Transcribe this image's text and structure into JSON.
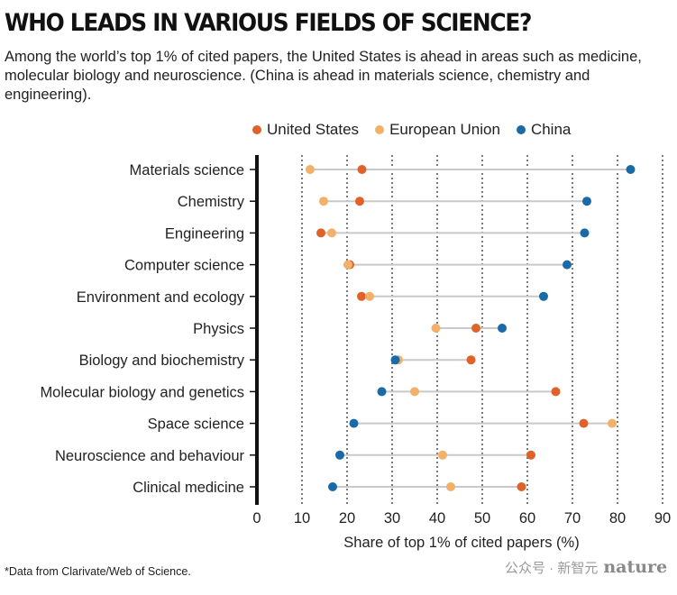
{
  "header": {
    "title": "WHO LEADS IN VARIOUS FIELDS OF SCIENCE?",
    "subtitle": "Among the world’s top 1% of cited papers, the United States is ahead in areas such as medicine, molecular biology and neuroscience. (China is ahead in materials science, chemistry and engineering)."
  },
  "footer": {
    "footnote": "*Data from Clarivate/Web of Science.",
    "watermark_source": "公众号 · 新智元",
    "watermark_brand": "nature"
  },
  "colors": {
    "us": "#e0622a",
    "eu": "#f2b06a",
    "china": "#1a6aa8",
    "connector": "#c9c9c9",
    "grid": "#222222"
  },
  "chart_data": {
    "type": "dot",
    "xlabel": "Share of top 1% of cited papers (%)",
    "xlim": [
      0,
      90
    ],
    "xticks": [
      0,
      10,
      20,
      30,
      40,
      50,
      60,
      70,
      80,
      90
    ],
    "grid": "vertical dotted",
    "legend_placement": "top",
    "categories": [
      "Materials science",
      "Chemistry",
      "Engineering",
      "Computer science",
      "Environment and ecology",
      "Physics",
      "Biology and biochemistry",
      "Molecular biology and genetics",
      "Space science",
      "Neuroscience and behaviour",
      "Clinical medicine"
    ],
    "series": [
      {
        "name": "United States",
        "key": "us",
        "values": [
          23.3,
          22.8,
          14.2,
          20.6,
          23.2,
          48.6,
          47.5,
          66.3,
          72.5,
          60.8,
          58.7
        ]
      },
      {
        "name": "European Union",
        "key": "eu",
        "values": [
          11.8,
          14.8,
          16.6,
          20.2,
          25.0,
          39.7,
          31.4,
          35.0,
          78.8,
          41.2,
          43.0
        ]
      },
      {
        "name": "China",
        "key": "china",
        "values": [
          82.9,
          73.2,
          72.7,
          68.8,
          63.6,
          54.4,
          30.7,
          27.7,
          21.5,
          18.4,
          16.8
        ]
      }
    ]
  }
}
